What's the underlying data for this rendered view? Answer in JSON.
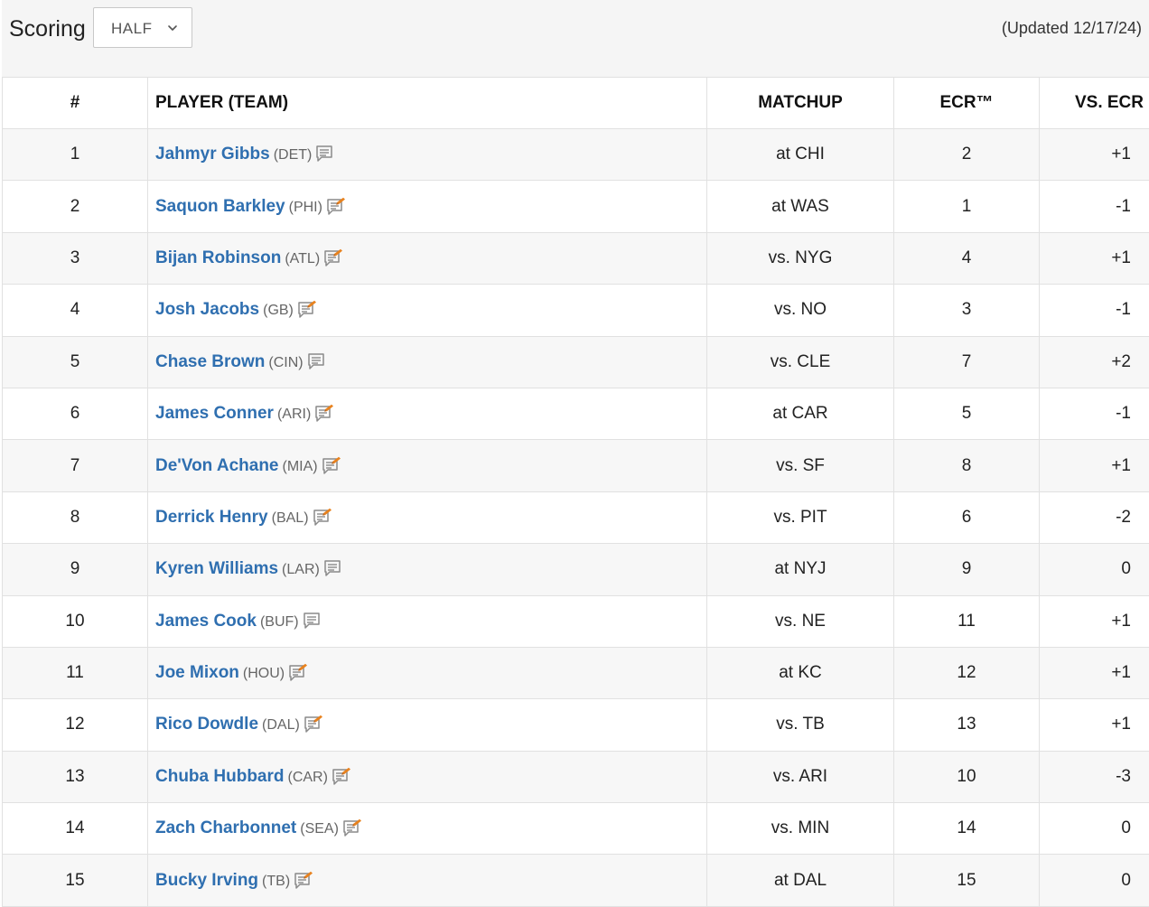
{
  "header": {
    "scoring_label": "Scoring",
    "scoring_value": "HALF",
    "updated": "(Updated 12/17/24)"
  },
  "table": {
    "columns": [
      "#",
      "PLAYER (TEAM)",
      "MATCHUP",
      "ECR™",
      "VS. ECR"
    ],
    "rows": [
      {
        "rank": "1",
        "player": "Jahmyr Gibbs",
        "team": "(DET)",
        "note": "plain",
        "matchup": "at CHI",
        "ecr": "2",
        "vs_ecr": "+1"
      },
      {
        "rank": "2",
        "player": "Saquon Barkley",
        "team": "(PHI)",
        "note": "new",
        "matchup": "at WAS",
        "ecr": "1",
        "vs_ecr": "-1"
      },
      {
        "rank": "3",
        "player": "Bijan Robinson",
        "team": "(ATL)",
        "note": "new",
        "matchup": "vs. NYG",
        "ecr": "4",
        "vs_ecr": "+1"
      },
      {
        "rank": "4",
        "player": "Josh Jacobs",
        "team": "(GB)",
        "note": "new",
        "matchup": "vs. NO",
        "ecr": "3",
        "vs_ecr": "-1"
      },
      {
        "rank": "5",
        "player": "Chase Brown",
        "team": "(CIN)",
        "note": "plain",
        "matchup": "vs. CLE",
        "ecr": "7",
        "vs_ecr": "+2"
      },
      {
        "rank": "6",
        "player": "James Conner",
        "team": "(ARI)",
        "note": "new",
        "matchup": "at CAR",
        "ecr": "5",
        "vs_ecr": "-1"
      },
      {
        "rank": "7",
        "player": "De'Von Achane",
        "team": "(MIA)",
        "note": "new",
        "matchup": "vs. SF",
        "ecr": "8",
        "vs_ecr": "+1"
      },
      {
        "rank": "8",
        "player": "Derrick Henry",
        "team": "(BAL)",
        "note": "new",
        "matchup": "vs. PIT",
        "ecr": "6",
        "vs_ecr": "-2"
      },
      {
        "rank": "9",
        "player": "Kyren Williams",
        "team": "(LAR)",
        "note": "plain",
        "matchup": "at NYJ",
        "ecr": "9",
        "vs_ecr": "0"
      },
      {
        "rank": "10",
        "player": "James Cook",
        "team": "(BUF)",
        "note": "plain",
        "matchup": "vs. NE",
        "ecr": "11",
        "vs_ecr": "+1"
      },
      {
        "rank": "11",
        "player": "Joe Mixon",
        "team": "(HOU)",
        "note": "new",
        "matchup": "at KC",
        "ecr": "12",
        "vs_ecr": "+1"
      },
      {
        "rank": "12",
        "player": "Rico Dowdle",
        "team": "(DAL)",
        "note": "new",
        "matchup": "vs. TB",
        "ecr": "13",
        "vs_ecr": "+1"
      },
      {
        "rank": "13",
        "player": "Chuba Hubbard",
        "team": "(CAR)",
        "note": "new",
        "matchup": "vs. ARI",
        "ecr": "10",
        "vs_ecr": "-3"
      },
      {
        "rank": "14",
        "player": "Zach Charbonnet",
        "team": "(SEA)",
        "note": "new",
        "matchup": "vs. MIN",
        "ecr": "14",
        "vs_ecr": "0"
      },
      {
        "rank": "15",
        "player": "Bucky Irving",
        "team": "(TB)",
        "note": "new",
        "matchup": "at DAL",
        "ecr": "15",
        "vs_ecr": "0"
      }
    ]
  },
  "colors": {
    "link": "#2f6fb0",
    "note_badge": "#e8821e"
  }
}
